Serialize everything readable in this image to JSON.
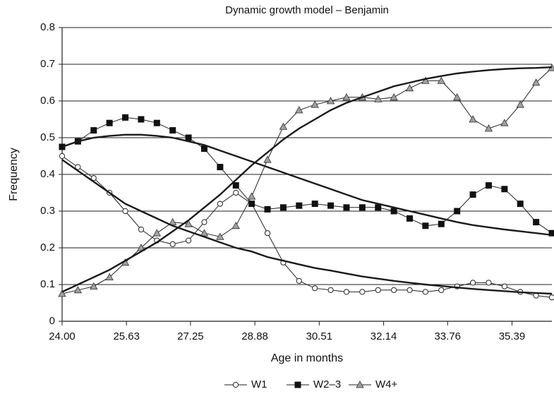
{
  "chart_data": {
    "type": "line",
    "title": "Dynamic growth model – Benjamin",
    "xlabel": "Age in months",
    "ylabel": "Frequency",
    "x": [
      24.0,
      24.4,
      24.8,
      25.2,
      25.6,
      26.0,
      26.4,
      26.8,
      27.2,
      27.6,
      28.0,
      28.4,
      28.8,
      29.2,
      29.6,
      30.0,
      30.4,
      30.8,
      31.2,
      31.6,
      32.0,
      32.4,
      32.8,
      33.2,
      33.6,
      34.0,
      34.4,
      34.8,
      35.2,
      35.6,
      36.0,
      36.4
    ],
    "series": [
      {
        "name": "W1",
        "marker": "circle",
        "marker_fill": "#ffffff",
        "color": "#222222",
        "values": [
          0.45,
          0.42,
          0.39,
          0.35,
          0.3,
          0.25,
          0.22,
          0.21,
          0.22,
          0.27,
          0.32,
          0.35,
          0.32,
          0.24,
          0.16,
          0.11,
          0.09,
          0.085,
          0.08,
          0.08,
          0.085,
          0.085,
          0.085,
          0.08,
          0.085,
          0.095,
          0.105,
          0.105,
          0.095,
          0.08,
          0.07,
          0.065
        ]
      },
      {
        "name": "W2–3",
        "marker": "square",
        "marker_fill": "#111111",
        "color": "#222222",
        "values": [
          0.475,
          0.49,
          0.52,
          0.54,
          0.555,
          0.55,
          0.54,
          0.52,
          0.5,
          0.47,
          0.42,
          0.37,
          0.32,
          0.305,
          0.31,
          0.315,
          0.32,
          0.315,
          0.31,
          0.31,
          0.31,
          0.3,
          0.28,
          0.26,
          0.265,
          0.3,
          0.345,
          0.37,
          0.36,
          0.32,
          0.27,
          0.24
        ]
      },
      {
        "name": "W4+",
        "marker": "triangle",
        "marker_fill": "#a0a0a0",
        "color": "#222222",
        "values": [
          0.075,
          0.085,
          0.095,
          0.12,
          0.16,
          0.2,
          0.24,
          0.27,
          0.265,
          0.24,
          0.23,
          0.26,
          0.34,
          0.44,
          0.53,
          0.575,
          0.59,
          0.6,
          0.61,
          0.61,
          0.605,
          0.61,
          0.635,
          0.655,
          0.655,
          0.61,
          0.55,
          0.525,
          0.54,
          0.59,
          0.65,
          0.69
        ]
      },
      {
        "color": "#1a1a1a",
        "values": [
          0.44,
          0.41,
          0.38,
          0.35,
          0.32,
          0.3,
          0.28,
          0.26,
          0.245,
          0.23,
          0.215,
          0.2,
          0.19,
          0.175,
          0.165,
          0.155,
          0.145,
          0.138,
          0.13,
          0.122,
          0.116,
          0.11,
          0.105,
          0.1,
          0.096,
          0.092,
          0.088,
          0.085,
          0.082,
          0.079,
          0.077,
          0.075
        ]
      },
      {
        "color": "#1a1a1a",
        "values": [
          0.475,
          0.49,
          0.5,
          0.505,
          0.508,
          0.508,
          0.505,
          0.5,
          0.49,
          0.48,
          0.465,
          0.45,
          0.435,
          0.42,
          0.405,
          0.39,
          0.375,
          0.36,
          0.345,
          0.33,
          0.32,
          0.31,
          0.3,
          0.29,
          0.28,
          0.27,
          0.262,
          0.256,
          0.25,
          0.245,
          0.24,
          0.235
        ]
      },
      {
        "color": "#1a1a1a",
        "values": [
          0.08,
          0.1,
          0.12,
          0.14,
          0.165,
          0.19,
          0.215,
          0.245,
          0.275,
          0.31,
          0.345,
          0.385,
          0.425,
          0.46,
          0.495,
          0.525,
          0.55,
          0.575,
          0.595,
          0.61,
          0.625,
          0.64,
          0.65,
          0.66,
          0.668,
          0.675,
          0.68,
          0.684,
          0.687,
          0.689,
          0.69,
          0.692
        ]
      }
    ],
    "xlim": [
      24.0,
      36.4
    ],
    "xticks": [
      {
        "value": 24,
        "label": "24.00"
      },
      25.63,
      27.25,
      28.88,
      30.51,
      32.14,
      33.76,
      35.39
    ],
    "ylim": [
      0,
      0.8
    ],
    "yticks": [
      0,
      0.1,
      0.2,
      0.3,
      0.4,
      0.5,
      0.6,
      0.7,
      0.8
    ],
    "grid": true
  }
}
